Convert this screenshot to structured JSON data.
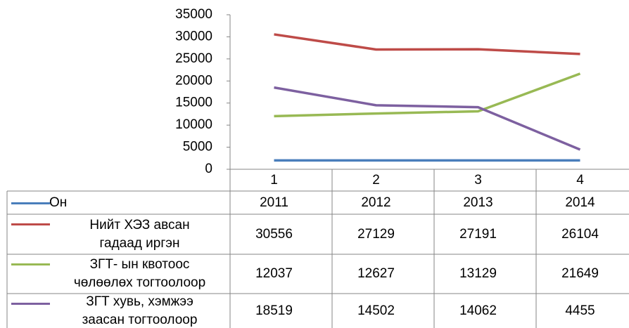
{
  "chart_data": {
    "type": "line",
    "categories": [
      "1",
      "2",
      "3",
      "4"
    ],
    "series": [
      {
        "name": "Он",
        "color": "#4a7ebb",
        "values": [
          2011,
          2012,
          2013,
          2014
        ]
      },
      {
        "name": "Нийт ХЭЗ авсан\nгадаад иргэн",
        "color": "#be4b48",
        "values": [
          30556,
          27129,
          27191,
          26104
        ]
      },
      {
        "name": "ЗГТ- ын квотоос\nчөлөөлөх тогтоолоор",
        "color": "#98b954",
        "values": [
          12037,
          12627,
          13129,
          21649
        ]
      },
      {
        "name": "ЗГТ хувь, хэмжээ\nзаасан тогтоолоор",
        "color": "#7d60a0",
        "values": [
          18519,
          14502,
          14062,
          4455
        ]
      }
    ],
    "ylim": [
      0,
      35000
    ],
    "yticks": [
      0,
      5000,
      10000,
      15000,
      20000,
      25000,
      30000,
      35000
    ],
    "data_table": true
  }
}
